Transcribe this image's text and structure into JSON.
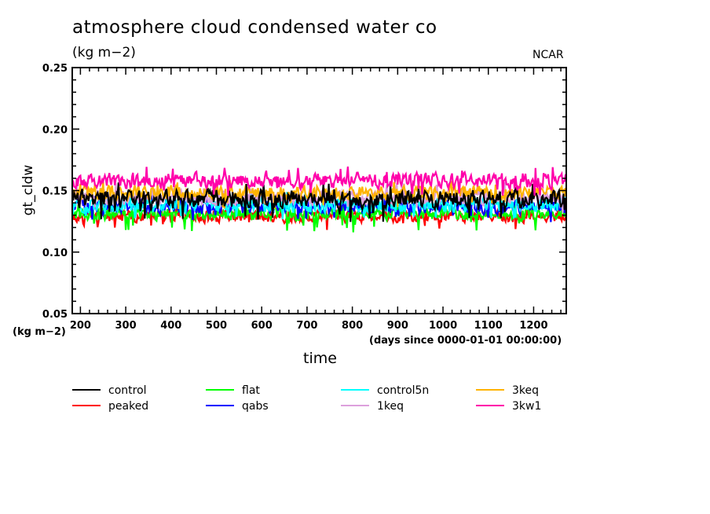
{
  "chart_data": {
    "type": "line",
    "title": "atmosphere cloud condensed water co",
    "subtitle": "(kg m−2)",
    "credit": "NCAR",
    "xlabel": "time",
    "xunits": "(days since 0000-01-01 00:00:00)",
    "ylabel": "gt_cldw",
    "yunits": "(kg m−2)",
    "xlim": [
      182,
      1272
    ],
    "ylim": [
      0.05,
      0.25
    ],
    "x_ticks": [
      200,
      300,
      400,
      500,
      600,
      700,
      800,
      900,
      1000,
      1100,
      1200
    ],
    "x_tick_labels": [
      "200",
      "300",
      "400",
      "500",
      "600",
      "700",
      "800",
      "900",
      "1000",
      "1100",
      "1200"
    ],
    "x_minor_step": 20,
    "y_ticks": [
      0.05,
      0.1,
      0.15,
      0.2,
      0.25
    ],
    "y_tick_labels": [
      "0.05",
      "0.10",
      "0.15",
      "0.20",
      "0.25"
    ],
    "y_minor_step": 0.01,
    "grid": false,
    "legend_placement": "bottom",
    "x_start": 182,
    "x_step_days": 2,
    "series": [
      {
        "name": "control",
        "color": "#000000",
        "mean": 0.143,
        "amplitude": 0.006,
        "min": 0.124,
        "max": 0.16,
        "seed": 11
      },
      {
        "name": "peaked",
        "color": "#ff0000",
        "mean": 0.129,
        "amplitude": 0.004,
        "min": 0.118,
        "max": 0.14,
        "seed": 23
      },
      {
        "name": "flat",
        "color": "#00ff00",
        "mean": 0.131,
        "amplitude": 0.004,
        "min": 0.116,
        "max": 0.142,
        "seed": 37
      },
      {
        "name": "qabs",
        "color": "#0000ff",
        "mean": 0.137,
        "amplitude": 0.005,
        "min": 0.124,
        "max": 0.15,
        "seed": 41
      },
      {
        "name": "control5n",
        "color": "#00ffff",
        "mean": 0.138,
        "amplitude": 0.005,
        "min": 0.122,
        "max": 0.152,
        "seed": 53
      },
      {
        "name": "1keq",
        "color": "#dda0dd",
        "mean": 0.145,
        "amplitude": 0.005,
        "min": 0.132,
        "max": 0.16,
        "seed": 67
      },
      {
        "name": "3keq",
        "color": "#ffb300",
        "mean": 0.148,
        "amplitude": 0.005,
        "min": 0.134,
        "max": 0.162,
        "seed": 79
      },
      {
        "name": "3kw1",
        "color": "#ff00aa",
        "mean": 0.158,
        "amplitude": 0.005,
        "min": 0.145,
        "max": 0.173,
        "seed": 97
      }
    ],
    "legend_order": [
      [
        "control",
        "flat",
        "control5n",
        "3keq"
      ],
      [
        "peaked",
        "qabs",
        "1keq",
        "3kw1"
      ]
    ]
  }
}
